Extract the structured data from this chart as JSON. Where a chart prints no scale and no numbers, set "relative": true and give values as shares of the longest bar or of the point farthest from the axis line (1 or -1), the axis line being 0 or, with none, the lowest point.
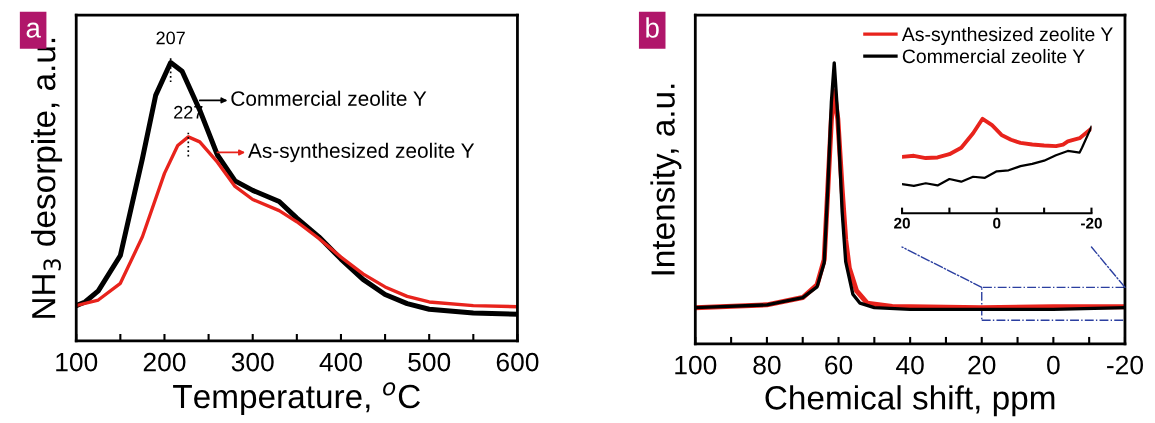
{
  "chart_data": [
    {
      "type": "line",
      "relative": true,
      "xlabel": "Temperature, $^{o}$C",
      "ylabel": "NH$_{3}$ desorpite, a.u.",
      "x": [
        100,
        110,
        125,
        150,
        175,
        190,
        207,
        220,
        240,
        260,
        280,
        300,
        330,
        350,
        375,
        400,
        425,
        450,
        475,
        500,
        550,
        600
      ],
      "xlim": [
        100,
        600
      ],
      "xticks": [
        100,
        {
          "value": 150,
          "label": null
        },
        200,
        {
          "value": 250,
          "label": null
        },
        300,
        {
          "value": 350,
          "label": null
        },
        400,
        {
          "value": 450,
          "label": null
        },
        500,
        {
          "value": 550,
          "label": null
        },
        600
      ],
      "series": [
        {
          "name": "Commercial zeolite Y",
          "color": "#000000",
          "values": [
            0.127,
            0.14,
            0.18,
            0.307,
            0.655,
            0.882,
            1.0,
            0.969,
            0.829,
            0.668,
            0.575,
            0.541,
            0.501,
            0.441,
            0.374,
            0.294,
            0.221,
            0.167,
            0.134,
            0.114,
            0.1,
            0.096
          ]
        },
        {
          "name": "As-synthesized zeolite Y",
          "color": "#e8231c",
          "x": [
            100,
            125,
            150,
            175,
            200,
            215,
            227,
            240,
            260,
            280,
            300,
            330,
            350,
            375,
            400,
            425,
            450,
            475,
            500,
            550,
            600
          ],
          "values": [
            0.127,
            0.147,
            0.207,
            0.374,
            0.602,
            0.702,
            0.733,
            0.715,
            0.642,
            0.555,
            0.508,
            0.468,
            0.428,
            0.368,
            0.301,
            0.241,
            0.194,
            0.16,
            0.14,
            0.127,
            0.123
          ]
        }
      ],
      "annotations": [
        "a",
        {
          "text": "207",
          "x": 207,
          "y": 1.0
        },
        {
          "text": "227",
          "x": 227,
          "y": 0.733
        }
      ],
      "legend": "top"
    },
    {
      "type": "line",
      "relative": true,
      "xlabel": "Chemical shift, ppm",
      "ylabel": "Intensity, a.u.",
      "x": [
        100,
        80,
        70,
        66,
        64,
        63,
        62,
        61.2,
        60.2,
        59,
        58,
        56,
        54,
        50,
        40,
        20,
        0,
        -20
      ],
      "xlim": [
        100,
        -20
      ],
      "xticks": [
        100,
        {
          "value": 90,
          "label": null
        },
        80,
        {
          "value": 70,
          "label": null
        },
        60,
        {
          "value": 50,
          "label": null
        },
        40,
        {
          "value": 30,
          "label": null
        },
        20,
        {
          "value": 10,
          "label": null
        },
        0,
        {
          "value": -10,
          "label": null
        },
        -20
      ],
      "series": [
        {
          "name": "As-synthesized zeolite Y",
          "color": "#e8231c",
          "x": [
            100,
            80,
            70,
            66,
            64,
            63,
            62,
            61.2,
            60.2,
            59,
            58,
            57,
            55,
            52,
            45,
            40,
            20,
            0,
            -20
          ],
          "values": [
            0.129,
            0.139,
            0.165,
            0.21,
            0.3,
            0.55,
            0.8,
            0.9,
            0.8,
            0.55,
            0.37,
            0.27,
            0.19,
            0.145,
            0.133,
            0.132,
            0.129,
            0.132,
            0.132
          ]
        },
        {
          "name": "Commercial zeolite Y",
          "color": "#000000",
          "values": [
            0.129,
            0.139,
            0.165,
            0.203,
            0.289,
            0.552,
            0.861,
            1.0,
            0.807,
            0.473,
            0.293,
            0.177,
            0.145,
            0.129,
            0.123,
            0.123,
            0.123,
            0.129
          ]
        }
      ],
      "annotations": [
        "b"
      ],
      "legend": "top right"
    },
    {
      "type": "line",
      "relative": true,
      "x": [
        20,
        17.5,
        15,
        12.5,
        10,
        7.5,
        5,
        3,
        1,
        -1,
        -3,
        -5,
        -7.5,
        -10,
        -12.5,
        -14,
        -15,
        -17.5,
        -20
      ],
      "xlim": [
        20,
        -20
      ],
      "xticks": [
        20,
        {
          "value": 10,
          "label": null
        },
        0,
        {
          "value": -10,
          "label": null
        },
        -20
      ],
      "series": [
        {
          "color": "#e8231c",
          "values": [
            0.597,
            0.608,
            0.584,
            0.59,
            0.625,
            0.693,
            0.846,
            1.0,
            0.932,
            0.829,
            0.778,
            0.744,
            0.727,
            0.717,
            0.71,
            0.727,
            0.761,
            0.795,
            0.898
          ]
        },
        {
          "color": "#000000",
          "x": [
            20,
            17.5,
            15,
            12.5,
            10,
            7.5,
            5,
            2.5,
            0,
            -2.5,
            -5,
            -7.5,
            -10,
            -12.5,
            -15,
            -17.5,
            -18,
            -20
          ],
          "values": [
            0.307,
            0.29,
            0.317,
            0.294,
            0.362,
            0.334,
            0.386,
            0.375,
            0.444,
            0.454,
            0.498,
            0.522,
            0.556,
            0.614,
            0.659,
            0.642,
            0.693,
            0.915
          ]
        }
      ],
      "legend": false
    }
  ]
}
